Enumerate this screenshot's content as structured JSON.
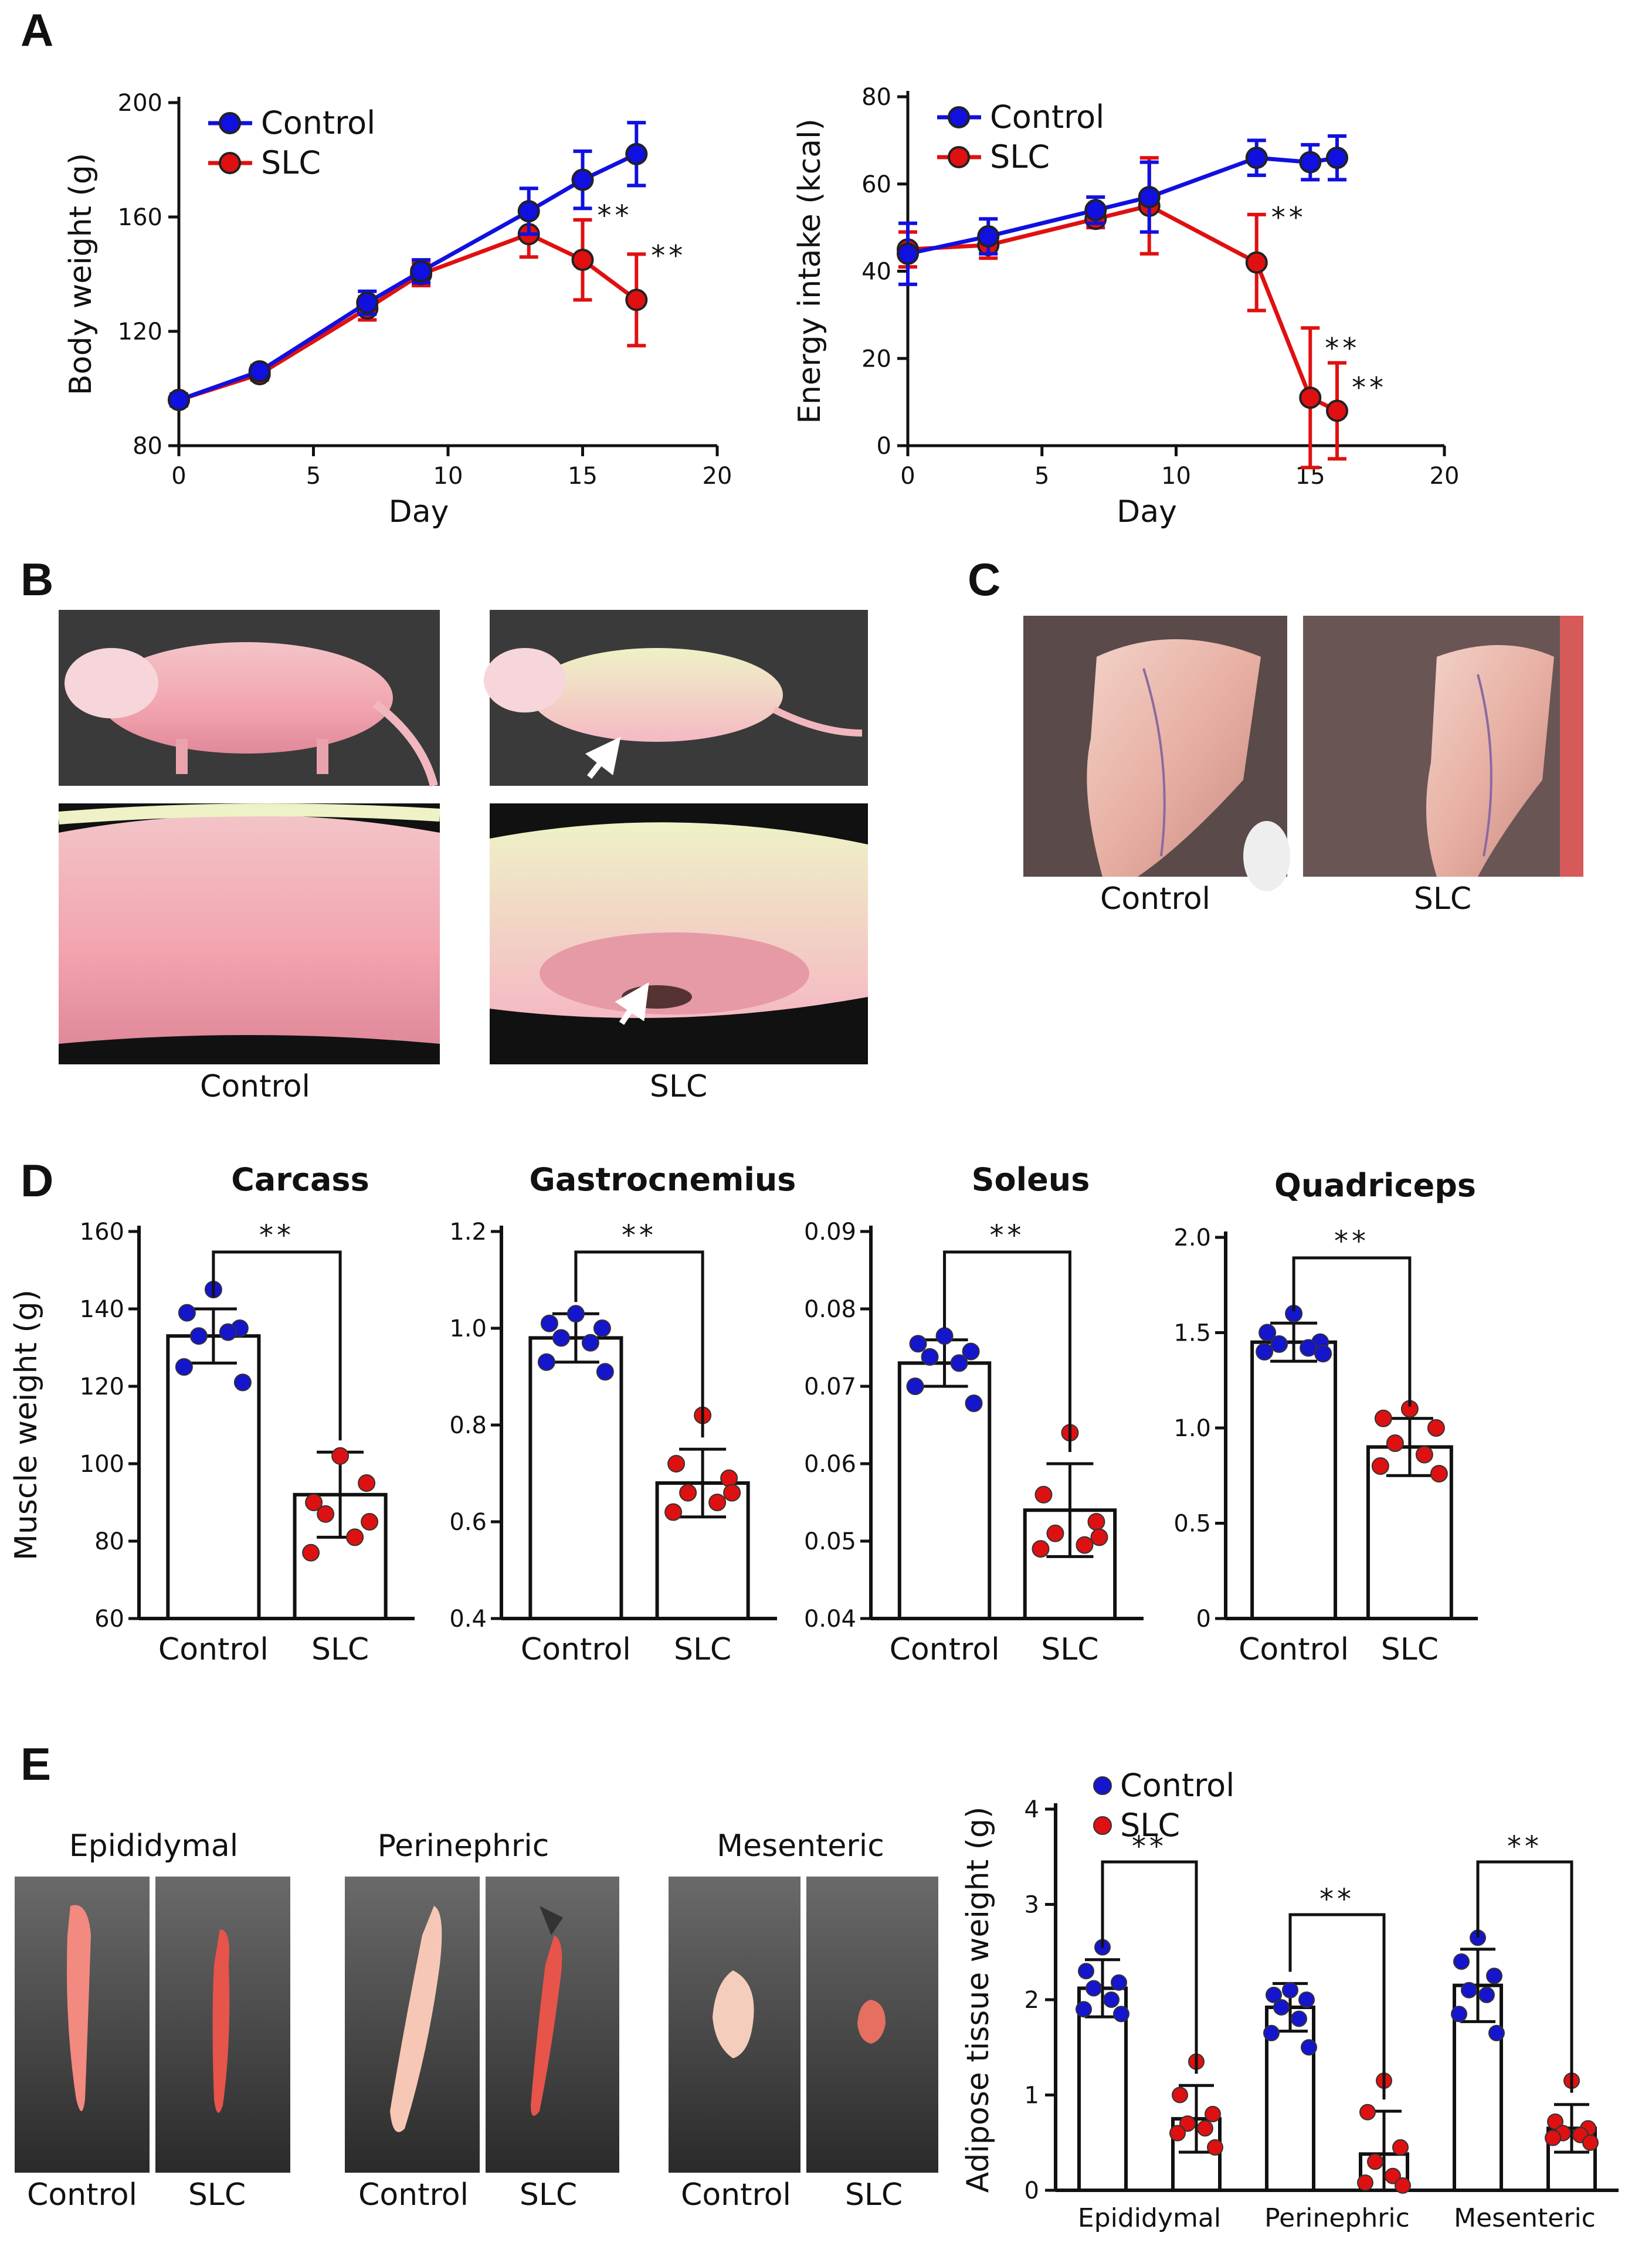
{
  "colors": {
    "control": "#1010e0",
    "slc": "#e01010",
    "control_marker": "#1515cc",
    "slc_marker": "#dd1111"
  },
  "panels": {
    "a": "A",
    "b": "B",
    "c": "C",
    "d": "D",
    "e": "E"
  },
  "photos": {
    "b": {
      "control_label": "Control",
      "slc_label": "SLC"
    },
    "c": {
      "control_label": "Control",
      "slc_label": "SLC"
    },
    "e": {
      "groups": [
        {
          "title": "Epididymal",
          "control_label": "Control",
          "slc_label": "SLC"
        },
        {
          "title": "Perinephric",
          "control_label": "Control",
          "slc_label": "SLC"
        },
        {
          "title": "Mesenteric",
          "control_label": "Control",
          "slc_label": "SLC"
        }
      ]
    }
  },
  "chart_data": [
    {
      "id": "body-weight",
      "type": "line",
      "xlabel": "Day",
      "ylabel": "Body weight (g)",
      "xlim": [
        0,
        20
      ],
      "ylim": [
        80,
        200
      ],
      "xticks": [
        "0",
        "5",
        "10",
        "15",
        "20"
      ],
      "yticks": [
        "80",
        "120",
        "160",
        "200"
      ],
      "legend": [
        "Control",
        "SLC"
      ],
      "series": [
        {
          "name": "Control",
          "x": [
            0,
            3,
            7,
            9,
            13,
            15,
            17
          ],
          "y": [
            96,
            106,
            130,
            141,
            162,
            173,
            182
          ],
          "err": [
            2,
            2,
            4,
            4,
            8,
            10,
            11
          ]
        },
        {
          "name": "SLC",
          "x": [
            0,
            3,
            7,
            9,
            13,
            15,
            17
          ],
          "y": [
            96,
            105,
            128,
            140,
            154,
            145,
            131
          ],
          "err": [
            2,
            2,
            4,
            4,
            8,
            14,
            16
          ]
        }
      ],
      "annotations": [
        {
          "x": 15,
          "y": 160,
          "text": "**"
        },
        {
          "x": 17,
          "y": 146,
          "text": "**"
        }
      ]
    },
    {
      "id": "energy-intake",
      "type": "line",
      "xlabel": "Day",
      "ylabel": "Energy intake (kcal)",
      "xlim": [
        0,
        20
      ],
      "ylim": [
        0,
        80
      ],
      "xticks": [
        "0",
        "5",
        "10",
        "15",
        "20"
      ],
      "yticks": [
        "0",
        "20",
        "40",
        "60",
        "80"
      ],
      "legend": [
        "Control",
        "SLC"
      ],
      "series": [
        {
          "name": "Control",
          "x": [
            0,
            3,
            7,
            9,
            13,
            15,
            16
          ],
          "y": [
            44,
            48,
            54,
            57,
            66,
            65,
            66
          ],
          "err": [
            7,
            4,
            3,
            8,
            4,
            4,
            5
          ]
        },
        {
          "name": "SLC",
          "x": [
            0,
            3,
            7,
            9,
            13,
            15,
            16
          ],
          "y": [
            45,
            46,
            52,
            55,
            42,
            11,
            8
          ],
          "err": [
            4,
            3,
            2,
            11,
            11,
            16,
            11
          ]
        }
      ],
      "annotations": [
        {
          "x": 13,
          "y": 52,
          "text": "**"
        },
        {
          "x": 15,
          "y": 22,
          "text": "**"
        },
        {
          "x": 16,
          "y": 13,
          "text": "**"
        }
      ]
    },
    {
      "id": "carcass",
      "type": "bar",
      "title": "Carcass",
      "ylabel": "Muscle weight (g)",
      "categories": [
        "Control",
        "SLC"
      ],
      "ylim": [
        60,
        160
      ],
      "yticks": [
        "60",
        "80",
        "100",
        "120",
        "140",
        "160"
      ],
      "values": [
        133,
        92
      ],
      "err": [
        7,
        11
      ],
      "points": [
        [
          145,
          139,
          135,
          133,
          134,
          125,
          121
        ],
        [
          102,
          90,
          95,
          87,
          81,
          77,
          85
        ]
      ],
      "sig": "**"
    },
    {
      "id": "gastrocnemius",
      "type": "bar",
      "title": "Gastrocnemius",
      "ylabel": "",
      "categories": [
        "Control",
        "SLC"
      ],
      "ylim": [
        0.4,
        1.2
      ],
      "yticks": [
        "0.4",
        "0.6",
        "0.8",
        "1.0",
        "1.2"
      ],
      "values": [
        0.98,
        0.68
      ],
      "err": [
        0.05,
        0.07
      ],
      "points": [
        [
          1.03,
          1.01,
          1.0,
          0.98,
          0.97,
          0.93,
          0.91
        ],
        [
          0.82,
          0.72,
          0.69,
          0.66,
          0.64,
          0.62,
          0.66
        ]
      ],
      "sig": "**"
    },
    {
      "id": "soleus",
      "type": "bar",
      "title": "Soleus",
      "ylabel": "",
      "categories": [
        "Control",
        "SLC"
      ],
      "ylim": [
        0.04,
        0.09
      ],
      "yticks": [
        "0.04",
        "0.05",
        "0.06",
        "0.07",
        "0.08",
        "0.09"
      ],
      "values": [
        0.073,
        0.054
      ],
      "err": [
        0.003,
        0.006
      ],
      "points": [
        [
          0.0765,
          0.0755,
          0.0745,
          0.0738,
          0.073,
          0.07,
          0.0678
        ],
        [
          0.064,
          0.056,
          0.0525,
          0.051,
          0.0495,
          0.049,
          0.0505
        ]
      ],
      "sig": "**"
    },
    {
      "id": "quadriceps",
      "type": "bar",
      "title": "Quadriceps",
      "ylabel": "",
      "categories": [
        "Control",
        "SLC"
      ],
      "ylim": [
        0,
        2.0
      ],
      "yticks": [
        "0",
        "0.5",
        "1.0",
        "1.5",
        "2.0"
      ],
      "values": [
        1.45,
        0.9
      ],
      "err": [
        0.1,
        0.15
      ],
      "points": [
        [
          1.6,
          1.5,
          1.45,
          1.44,
          1.42,
          1.4,
          1.39
        ],
        [
          1.1,
          1.05,
          1.0,
          0.92,
          0.86,
          0.8,
          0.76
        ]
      ],
      "sig": "**"
    },
    {
      "id": "adipose",
      "type": "bar",
      "ylabel": "Adipose tissue weight (g)",
      "categories": [
        "Epididymal",
        "Perinephric",
        "Mesenteric"
      ],
      "legend": [
        "Control",
        "SLC"
      ],
      "ylim": [
        0,
        4
      ],
      "yticks": [
        "0",
        "1",
        "2",
        "3",
        "4"
      ],
      "series": [
        {
          "name": "Control",
          "values": [
            2.12,
            1.92,
            2.15
          ],
          "err": [
            0.3,
            0.25,
            0.38
          ],
          "points": [
            [
              2.55,
              2.3,
              2.18,
              2.12,
              2.0,
              1.9,
              1.85
            ],
            [
              2.1,
              2.05,
              2.0,
              1.92,
              1.8,
              1.65,
              1.5
            ],
            [
              2.65,
              2.4,
              2.25,
              2.1,
              2.05,
              1.85,
              1.65
            ]
          ]
        },
        {
          "name": "SLC",
          "values": [
            0.75,
            0.38,
            0.65
          ],
          "err": [
            0.35,
            0.45,
            0.25
          ],
          "points": [
            [
              1.35,
              1.0,
              0.8,
              0.7,
              0.65,
              0.6,
              0.45
            ],
            [
              1.15,
              0.82,
              0.45,
              0.3,
              0.15,
              0.08,
              0.05
            ],
            [
              1.15,
              0.72,
              0.65,
              0.6,
              0.58,
              0.55,
              0.5
            ]
          ]
        }
      ],
      "sig": [
        "**",
        "**",
        "**"
      ]
    }
  ]
}
